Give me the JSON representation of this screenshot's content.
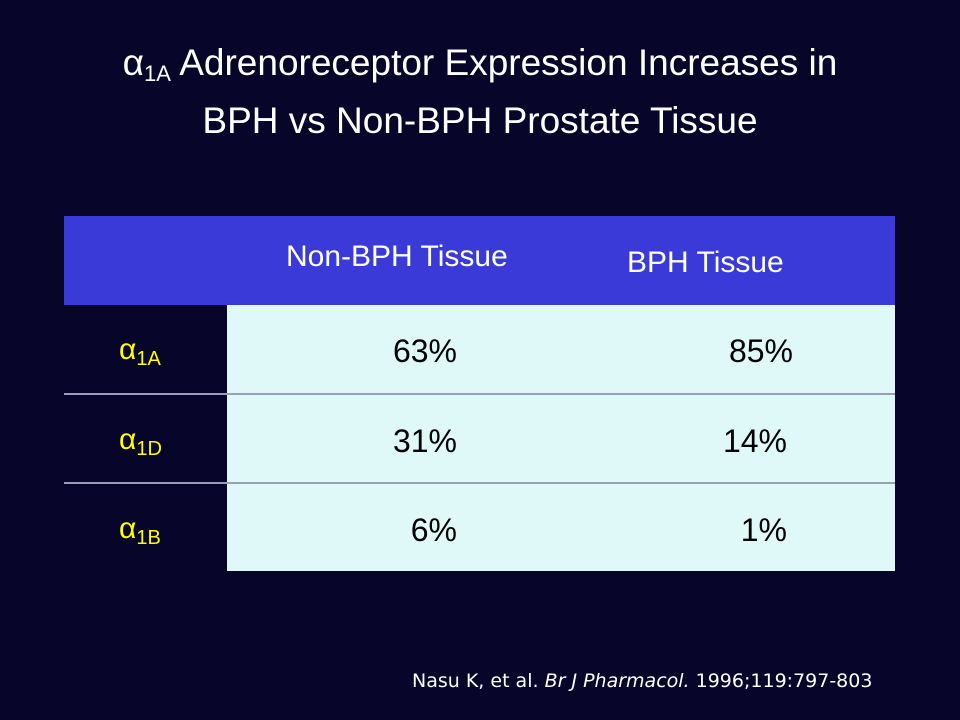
{
  "slide": {
    "title_line1_symbol": "α",
    "title_line1_sub": "1A",
    "title_line1_rest": " Adrenoreceptor Expression Increases in",
    "title_line2": "BPH vs Non-BPH Prostate Tissue"
  },
  "table": {
    "columns": [
      "Non-BPH Tissue",
      "BPH Tissue"
    ],
    "rows": [
      {
        "symbol": "α",
        "sub": "1A",
        "non_bph": "63%",
        "bph": "85%"
      },
      {
        "symbol": "α",
        "sub": "1D",
        "non_bph": "31%",
        "bph": "14%"
      },
      {
        "symbol": "α",
        "sub": "1B",
        "non_bph": "6%",
        "bph": "1%"
      }
    ]
  },
  "citation": {
    "authors": "Nasu K, et al. ",
    "journal": "Br J Pharmacol.",
    "details": " 1996;119:797-803"
  },
  "colors": {
    "background": "#07052a",
    "header": "#3a3ad9",
    "cells": "#dff8f8",
    "row_label_text": "#ffff00"
  }
}
